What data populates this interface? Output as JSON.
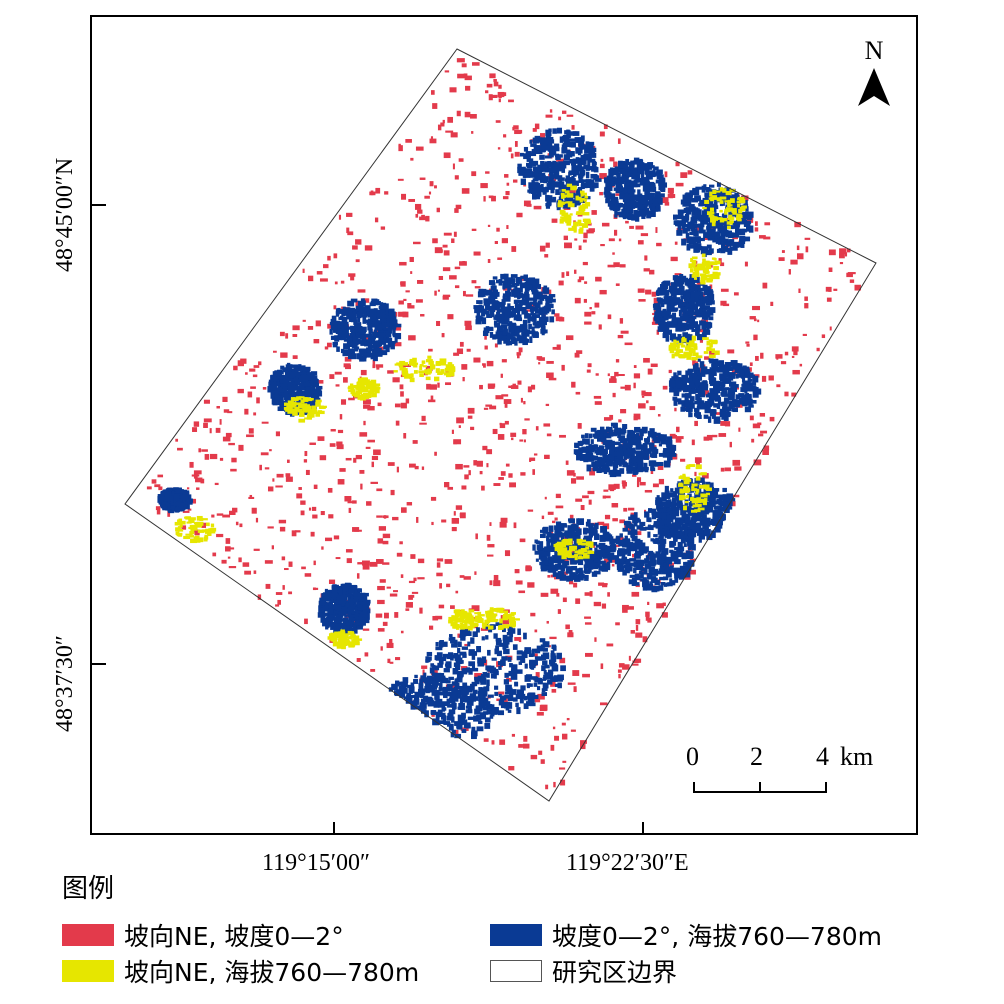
{
  "map": {
    "lat_labels": [
      "48°45′00″N",
      "48°37′30″"
    ],
    "lon_labels": [
      "119°15′00″",
      "119°22′30″E"
    ],
    "north_arrow": {
      "letter": "N",
      "icon": "north-arrow-icon"
    },
    "scale": {
      "ticks": [
        "0",
        "2",
        "4"
      ],
      "unit": "km"
    }
  },
  "legend": {
    "title": "图例",
    "items": [
      {
        "label": "坡向NE, 坡度0—2°",
        "color": "#e33a4b"
      },
      {
        "label": "坡度0—2°, 海拔760—780m",
        "color": "#0a3a94"
      },
      {
        "label": "坡向NE, 海拔760—780m",
        "color": "#e6e600"
      },
      {
        "label": "研究区边界",
        "color": "#ffffff"
      }
    ]
  }
}
